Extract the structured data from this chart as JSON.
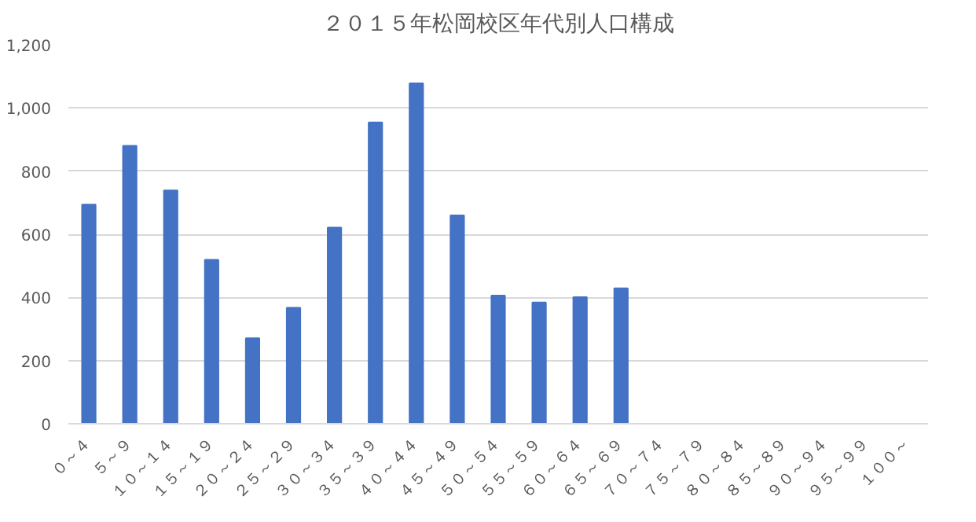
{
  "chart_data": {
    "type": "bar",
    "title": "２０１５年松岡校区年代別人口構成",
    "categories": [
      "０～４",
      "５～９",
      "１０～１４",
      "１５～１９",
      "２０～２４",
      "２５～２９",
      "３０～３４",
      "３５～３９",
      "４０～４４",
      "４５～４９",
      "５０～５４",
      "５５～５９",
      "６０～６４",
      "６５～６９",
      "７０～７４",
      "７５～７９",
      "８０～８４",
      "８５～８９",
      "９０～９４",
      "９５～９９",
      "１００～"
    ],
    "values": [
      694,
      880,
      739,
      519,
      271,
      367,
      621,
      954,
      1078,
      660,
      406,
      384,
      401,
      429,
      null,
      null,
      null,
      null,
      null,
      null,
      null
    ],
    "color": "#4472c4",
    "ylim": [
      0,
      1200
    ],
    "yticks": [
      {
        "value": 0,
        "label": "0"
      },
      {
        "value": 200,
        "label": "200"
      },
      {
        "value": 400,
        "label": "400"
      },
      {
        "value": 600,
        "label": "600"
      },
      {
        "value": 800,
        "label": "800"
      },
      {
        "value": 1000,
        "label": "1,000"
      },
      {
        "value": 1200,
        "label": "1,200"
      }
    ],
    "grid": "y"
  }
}
